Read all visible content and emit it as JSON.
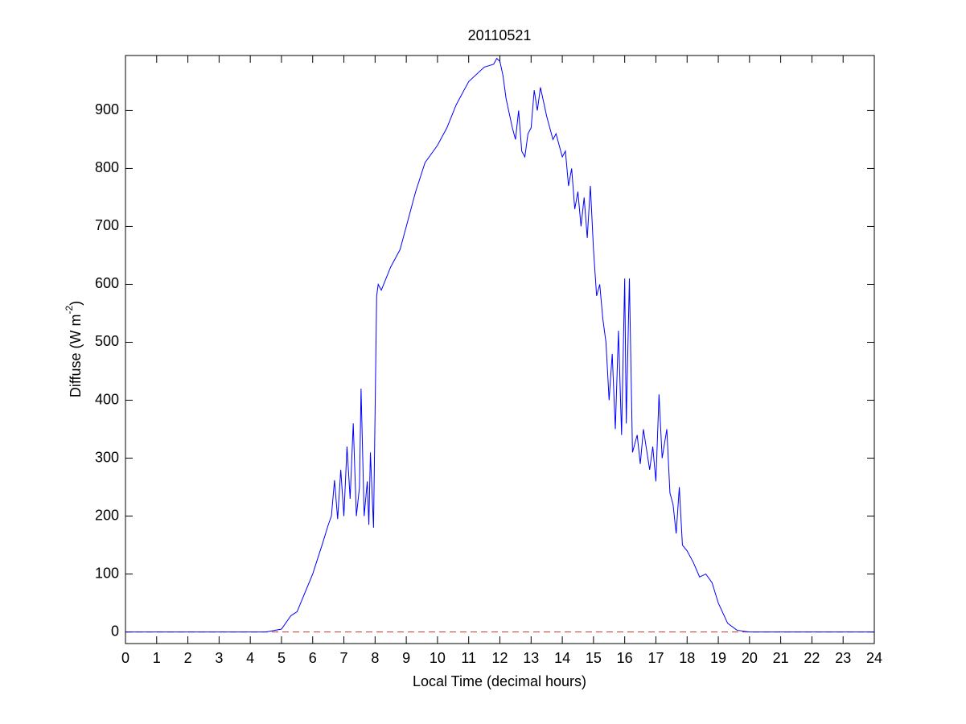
{
  "chart_data": {
    "type": "line",
    "title": "20110521",
    "x_label": "Local Time (decimal hours)",
    "y_label_parts": [
      "Diffuse (W m",
      "-2",
      ")"
    ],
    "x": [
      0,
      4.5,
      5,
      5.3,
      5.5,
      6,
      6.3,
      6.5,
      6.6,
      6.7,
      6.8,
      6.9,
      7.0,
      7.1,
      7.2,
      7.3,
      7.4,
      7.5,
      7.55,
      7.65,
      7.75,
      7.8,
      7.85,
      7.95,
      8.05,
      8.1,
      8.2,
      8.5,
      8.7,
      8.8,
      9.0,
      9.3,
      9.6,
      10,
      10.3,
      10.6,
      11,
      11.5,
      11.8,
      11.9,
      12.0,
      12.1,
      12.2,
      12.4,
      12.5,
      12.6,
      12.7,
      12.8,
      12.9,
      13.0,
      13.1,
      13.2,
      13.3,
      13.5,
      13.6,
      13.7,
      13.8,
      14.0,
      14.1,
      14.2,
      14.3,
      14.4,
      14.5,
      14.6,
      14.7,
      14.8,
      14.9,
      15.0,
      15.1,
      15.2,
      15.3,
      15.4,
      15.5,
      15.6,
      15.7,
      15.8,
      15.9,
      16.0,
      16.05,
      16.15,
      16.25,
      16.4,
      16.5,
      16.6,
      16.8,
      16.9,
      17.0,
      17.1,
      17.2,
      17.35,
      17.45,
      17.55,
      17.65,
      17.75,
      17.85,
      18.0,
      18.2,
      18.4,
      18.6,
      18.8,
      19.0,
      19.3,
      19.6,
      20,
      24
    ],
    "series": [
      {
        "name": "Diffuse",
        "color": "#0000ff",
        "values": [
          0,
          0,
          5,
          28,
          35,
          100,
          150,
          185,
          200,
          262,
          195,
          280,
          200,
          320,
          230,
          360,
          200,
          250,
          420,
          200,
          260,
          185,
          310,
          180,
          580,
          600,
          590,
          630,
          650,
          660,
          700,
          760,
          810,
          840,
          870,
          910,
          950,
          975,
          980,
          990,
          985,
          960,
          920,
          870,
          850,
          900,
          830,
          820,
          860,
          870,
          935,
          900,
          940,
          890,
          870,
          850,
          860,
          820,
          830,
          770,
          800,
          730,
          760,
          700,
          750,
          680,
          770,
          660,
          580,
          600,
          540,
          500,
          400,
          480,
          350,
          520,
          340,
          610,
          360,
          610,
          310,
          340,
          290,
          350,
          280,
          320,
          260,
          410,
          300,
          350,
          240,
          220,
          170,
          250,
          150,
          140,
          120,
          95,
          100,
          85,
          50,
          15,
          3,
          0,
          0
        ]
      }
    ],
    "reference_line": {
      "value": 0,
      "color": "#c0392b"
    },
    "xlim": [
      0,
      24
    ],
    "ylim": [
      -20,
      995
    ],
    "xticks": [
      0,
      1,
      2,
      3,
      4,
      5,
      6,
      7,
      8,
      9,
      10,
      11,
      12,
      13,
      14,
      15,
      16,
      17,
      18,
      19,
      20,
      21,
      22,
      23,
      24
    ],
    "yticks": [
      0,
      100,
      200,
      300,
      400,
      500,
      600,
      700,
      800,
      900
    ]
  }
}
